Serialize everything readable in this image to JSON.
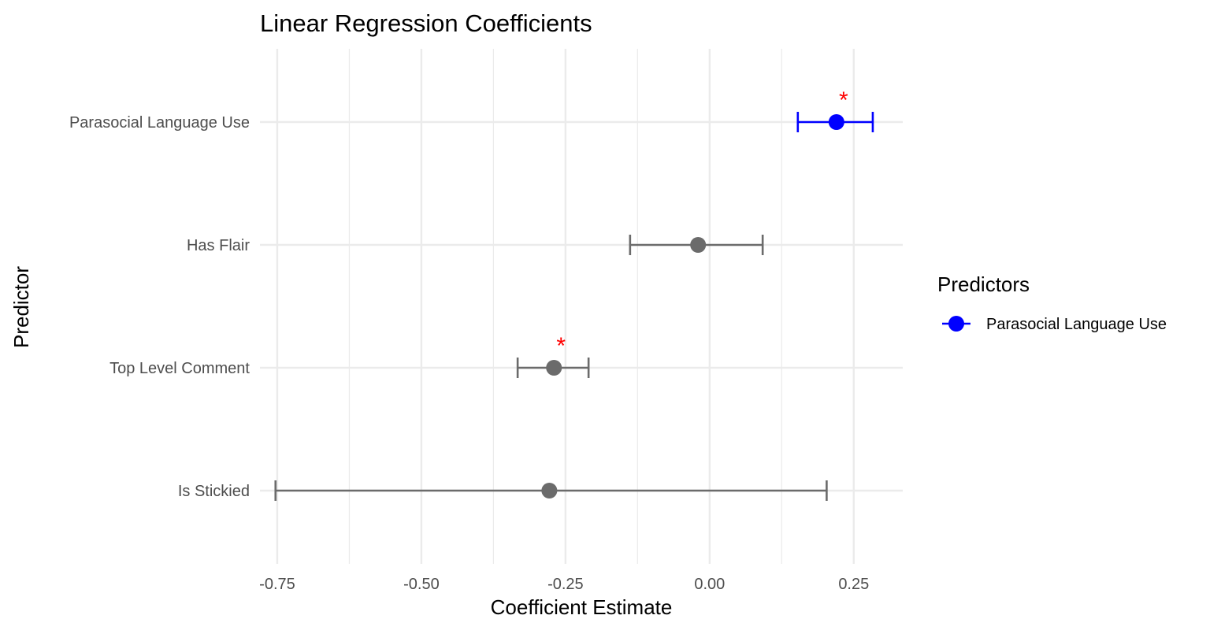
{
  "chart_data": {
    "type": "scatter",
    "title": "Linear Regression Coefficients",
    "xlabel": "Coefficient Estimate",
    "ylabel": "Predictor",
    "xlim": [
      -0.78,
      0.335
    ],
    "x_ticks": [
      -0.75,
      -0.5,
      -0.25,
      0.0,
      0.25
    ],
    "x_tick_labels": [
      "-0.75",
      "-0.50",
      "-0.25",
      "0.00",
      "0.25"
    ],
    "grid": true,
    "categories": [
      "Parasocial Language Use",
      "Has Flair",
      "Top Level Comment",
      "Is Stickied"
    ],
    "estimates": [
      0.22,
      -0.02,
      -0.27,
      -0.278
    ],
    "ci_low": [
      0.153,
      -0.138,
      -0.333,
      -0.753
    ],
    "ci_high": [
      0.283,
      0.092,
      -0.21,
      0.203
    ],
    "significant": [
      true,
      false,
      true,
      false
    ],
    "significance_marker": "*",
    "highlight": [
      true,
      false,
      false,
      false
    ],
    "colors": {
      "highlight": "#0000ff",
      "default": "#6b6b6b",
      "significance": "#ff0000",
      "grid": "#ebebeb"
    },
    "legend": {
      "title": "Predictors",
      "placement": "right",
      "entries": [
        {
          "name": "Parasocial Language Use",
          "color": "#0000ff"
        }
      ]
    }
  }
}
